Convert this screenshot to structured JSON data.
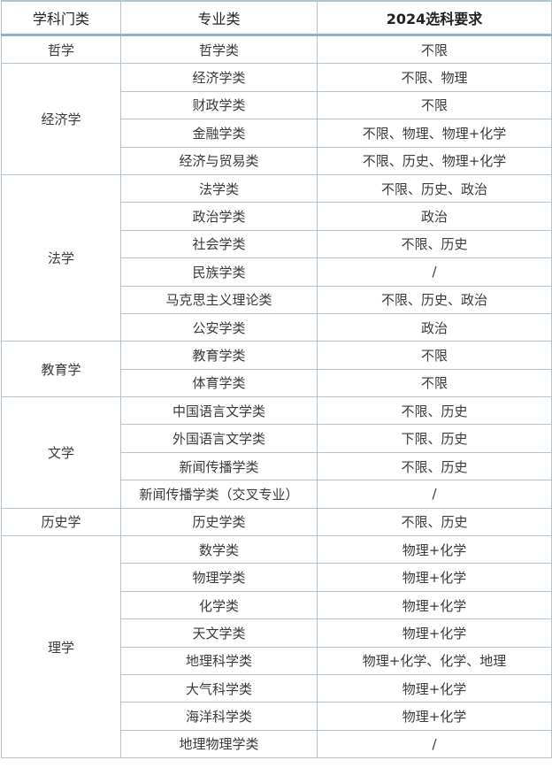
{
  "header": {
    "col1": "学科门类",
    "col2": "专业类",
    "col3": "2024选科要求"
  },
  "groups": [
    {
      "category": "哲学",
      "majors": [
        {
          "name": "哲学类",
          "req": "不限"
        }
      ]
    },
    {
      "category": "经济学",
      "majors": [
        {
          "name": "经济学类",
          "req": "不限、物理"
        },
        {
          "name": "财政学类",
          "req": "不限"
        },
        {
          "name": "金融学类",
          "req": "不限、物理、物理+化学"
        },
        {
          "name": "经济与贸易类",
          "req": "不限、历史、物理+化学"
        }
      ]
    },
    {
      "category": "法学",
      "majors": [
        {
          "name": "法学类",
          "req": "不限、历史、政治"
        },
        {
          "name": "政治学类",
          "req": "政治"
        },
        {
          "name": "社会学类",
          "req": "不限、历史"
        },
        {
          "name": "民族学类",
          "req": "/"
        },
        {
          "name": "马克思主义理论类",
          "req": "不限、历史、政治"
        },
        {
          "name": "公安学类",
          "req": "政治"
        }
      ]
    },
    {
      "category": "教育学",
      "majors": [
        {
          "name": "教育学类",
          "req": "不限"
        },
        {
          "name": "体育学类",
          "req": "不限"
        }
      ]
    },
    {
      "category": "文学",
      "majors": [
        {
          "name": "中国语言文学类",
          "req": "不限、历史"
        },
        {
          "name": "外国语言文学类",
          "req": "下限、历史"
        },
        {
          "name": "新闻传播学类",
          "req": "不限、历史"
        },
        {
          "name": "新闻传播学类（交叉专业）",
          "req": "/"
        }
      ]
    },
    {
      "category": "历史学",
      "majors": [
        {
          "name": "历史学类",
          "req": "不限、历史"
        }
      ]
    },
    {
      "category": "理学",
      "majors": [
        {
          "name": "数学类",
          "req": "物理+化学"
        },
        {
          "name": "物理学类",
          "req": "物理+化学"
        },
        {
          "name": "化学类",
          "req": "物理+化学"
        },
        {
          "name": "天文学类",
          "req": "物理+化学"
        },
        {
          "name": "地理科学类",
          "req": "物理+化学、化学、地理"
        },
        {
          "name": "大气科学类",
          "req": "物理+化学"
        },
        {
          "name": "海洋科学类",
          "req": "物理+化学"
        },
        {
          "name": "地理物理学类",
          "req": "/"
        }
      ]
    }
  ]
}
